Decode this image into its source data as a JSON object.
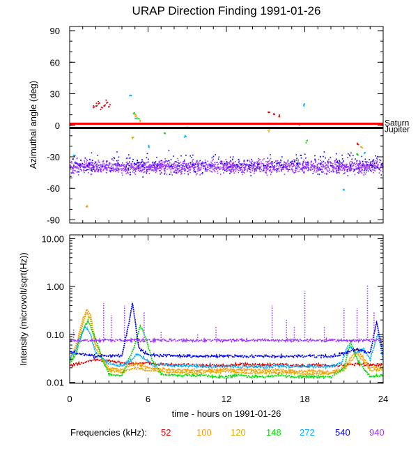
{
  "chart_data": [
    {
      "type": "scatter",
      "title": "URAP Direction Finding  1991-01-26",
      "xlabel": "",
      "ylabel": "Azimuthal angle (deg)",
      "xlim": [
        0,
        24
      ],
      "ylim": [
        -93,
        94
      ],
      "yticks": [
        90,
        60,
        30,
        0,
        -30,
        -60,
        -90
      ],
      "ytick_labels": [
        "90",
        "60",
        "30",
        "0",
        "-30",
        "-60",
        "-90"
      ],
      "reference_lines": [
        {
          "name": "Saturn",
          "y": 1.5,
          "color": "#ff0000"
        },
        {
          "name": "Jupiter",
          "y": -2.5,
          "color": "#000000"
        }
      ],
      "series": [
        {
          "name": "940",
          "color": "#9933ff",
          "description": "dense band",
          "x_range": [
            0,
            24
          ],
          "y_center": -39,
          "y_spread": 6
        },
        {
          "name": "540",
          "color": "#0000ee",
          "description": "scattered near band",
          "x_range": [
            0,
            24
          ],
          "y_center": -36,
          "y_spread": 10
        },
        {
          "name": "272",
          "color": "#00aaff",
          "points": [
            [
              0.3,
              -28
            ],
            [
              4.6,
              30
            ],
            [
              5.0,
              8
            ],
            [
              6.0,
              -20
            ],
            [
              8.8,
              -10
            ],
            [
              17.9,
              20
            ],
            [
              20.9,
              -60
            ],
            [
              22.5,
              -25
            ]
          ]
        },
        {
          "name": "148",
          "color": "#00dd00",
          "points": [
            [
              4.9,
              12
            ],
            [
              5.2,
              8
            ],
            [
              7.2,
              -6
            ],
            [
              17.6,
              2
            ],
            [
              18.1,
              -15
            ],
            [
              22.0,
              -28
            ]
          ]
        },
        {
          "name": "120",
          "color": "#ddaa00",
          "points": [
            [
              4.8,
              -12
            ],
            [
              5.3,
              5
            ],
            [
              9.0,
              -2
            ],
            [
              15.2,
              -5
            ],
            [
              22.3,
              -20
            ]
          ]
        },
        {
          "name": "100",
          "color": "#ff9900",
          "points": [
            [
              1.3,
              -77
            ],
            [
              5.0,
              10
            ],
            [
              15.0,
              -3
            ]
          ]
        },
        {
          "name": "52",
          "color": "#dd0000",
          "points": [
            [
              1.8,
              18
            ],
            [
              2.0,
              20
            ],
            [
              2.2,
              22
            ],
            [
              2.4,
              17
            ],
            [
              2.6,
              20
            ],
            [
              2.8,
              23
            ],
            [
              3.0,
              19
            ],
            [
              15.2,
              12
            ],
            [
              15.6,
              10
            ],
            [
              16.0,
              9
            ],
            [
              22.0,
              -18
            ]
          ]
        }
      ]
    },
    {
      "type": "line",
      "title": "",
      "xlabel": "time - hours on 1991-01-26",
      "ylabel": "Intensity (microvolt/sqrt(Hz))",
      "xscale": "linear",
      "yscale": "log",
      "xlim": [
        0,
        24
      ],
      "ylim": [
        0.0095,
        12
      ],
      "xticks": [
        0,
        6,
        12,
        18,
        24
      ],
      "xtick_labels": [
        "0",
        "6",
        "12",
        "18",
        "24"
      ],
      "yticks": [
        10,
        1,
        0.1,
        0.01
      ],
      "ytick_labels": [
        "10.00",
        "1.00",
        "0.10",
        "0.01"
      ],
      "series": [
        {
          "name": "52",
          "color": "#dd0000",
          "x": [
            0,
            1,
            2,
            3,
            4,
            5,
            6,
            7,
            8,
            9,
            10,
            11,
            12,
            13,
            14,
            15,
            16,
            17,
            18,
            19,
            20,
            21,
            22,
            23,
            24
          ],
          "y": [
            0.022,
            0.026,
            0.03,
            0.028,
            0.025,
            0.024,
            0.025,
            0.024,
            0.023,
            0.023,
            0.022,
            0.023,
            0.022,
            0.024,
            0.023,
            0.023,
            0.024,
            0.023,
            0.022,
            0.023,
            0.022,
            0.023,
            0.024,
            0.023,
            0.023
          ]
        },
        {
          "name": "100",
          "color": "#ff9900",
          "x": [
            0,
            0.5,
            1,
            1.3,
            1.6,
            2,
            3,
            4,
            5,
            6,
            7,
            8,
            9,
            10,
            11,
            12,
            13,
            14,
            15,
            16,
            17,
            18,
            19,
            20,
            21,
            22,
            23,
            24
          ],
          "y": [
            0.03,
            0.06,
            0.2,
            0.33,
            0.25,
            0.06,
            0.02,
            0.018,
            0.025,
            0.02,
            0.019,
            0.018,
            0.018,
            0.018,
            0.018,
            0.019,
            0.018,
            0.018,
            0.018,
            0.018,
            0.017,
            0.017,
            0.017,
            0.016,
            0.02,
            0.05,
            0.02,
            0.02
          ]
        },
        {
          "name": "120",
          "color": "#ddaa00",
          "x": [
            0,
            0.5,
            1,
            1.3,
            1.6,
            2,
            3,
            4,
            5,
            6,
            7,
            8,
            9,
            10,
            11,
            12,
            13,
            14,
            15,
            16,
            17,
            18,
            19,
            20,
            21,
            22,
            23,
            24
          ],
          "y": [
            0.028,
            0.05,
            0.16,
            0.28,
            0.2,
            0.05,
            0.018,
            0.016,
            0.02,
            0.018,
            0.017,
            0.016,
            0.016,
            0.016,
            0.016,
            0.017,
            0.016,
            0.016,
            0.016,
            0.016,
            0.016,
            0.015,
            0.015,
            0.015,
            0.018,
            0.04,
            0.018,
            0.018
          ]
        },
        {
          "name": "148",
          "color": "#00dd00",
          "x": [
            0,
            0.5,
            1,
            1.4,
            2,
            2.5,
            3,
            4,
            5,
            5.4,
            5.8,
            6.3,
            7,
            8,
            9,
            10,
            11,
            12,
            13,
            14,
            15,
            16,
            17,
            18,
            19,
            20,
            21,
            21.5,
            22,
            23,
            24
          ],
          "y": [
            0.025,
            0.04,
            0.12,
            0.2,
            0.08,
            0.03,
            0.015,
            0.014,
            0.06,
            0.15,
            0.09,
            0.03,
            0.015,
            0.014,
            0.014,
            0.014,
            0.013,
            0.013,
            0.014,
            0.013,
            0.013,
            0.014,
            0.013,
            0.013,
            0.013,
            0.013,
            0.02,
            0.07,
            0.03,
            0.013,
            0.014
          ]
        },
        {
          "name": "272",
          "color": "#00aaff",
          "x": [
            0,
            0.5,
            0.9,
            1.2,
            1.6,
            2,
            3,
            4,
            4.8,
            5.2,
            5.8,
            6.5,
            7,
            8,
            9,
            10,
            11,
            12,
            13,
            14,
            15,
            16,
            17,
            18,
            19,
            20,
            20.8,
            21.3,
            22,
            22.5,
            23,
            23.6,
            24
          ],
          "y": [
            0.03,
            0.05,
            0.1,
            0.15,
            0.1,
            0.04,
            0.025,
            0.022,
            0.03,
            0.04,
            0.03,
            0.022,
            0.024,
            0.022,
            0.022,
            0.022,
            0.021,
            0.022,
            0.021,
            0.021,
            0.021,
            0.022,
            0.021,
            0.022,
            0.021,
            0.021,
            0.025,
            0.06,
            0.04,
            0.05,
            0.03,
            0.1,
            0.03
          ]
        },
        {
          "name": "540",
          "color": "#0000ee",
          "x": [
            0,
            0.5,
            1,
            2,
            3,
            4,
            4.5,
            4.8,
            5.0,
            5.3,
            6,
            7,
            8,
            9,
            10,
            11,
            12,
            13,
            14,
            15,
            16,
            17,
            18,
            19,
            20,
            21,
            22,
            23,
            23.5,
            24
          ],
          "y": [
            0.045,
            0.04,
            0.038,
            0.035,
            0.036,
            0.036,
            0.15,
            0.45,
            0.2,
            0.05,
            0.038,
            0.036,
            0.036,
            0.035,
            0.035,
            0.035,
            0.035,
            0.035,
            0.035,
            0.035,
            0.035,
            0.035,
            0.035,
            0.035,
            0.035,
            0.04,
            0.05,
            0.04,
            0.18,
            0.04
          ]
        },
        {
          "name": "940",
          "color": "#9933ff",
          "x": [
            0,
            24
          ],
          "y": [
            0.075,
            0.075
          ],
          "spikes_x": [
            0.3,
            2.6,
            3.2,
            4.2,
            5.7,
            7.0,
            9.8,
            11.2,
            15.5,
            16.6,
            17.2,
            18.0,
            19.5,
            21.0,
            22.0,
            22.8,
            23.3
          ],
          "spikes_y": [
            0.13,
            0.45,
            0.25,
            0.4,
            0.3,
            0.12,
            0.1,
            0.15,
            0.4,
            0.2,
            0.15,
            0.8,
            0.15,
            0.35,
            0.35,
            1.05,
            0.3
          ]
        }
      ]
    }
  ],
  "legend": {
    "label": "Frequencies (kHz):",
    "entries": [
      {
        "text": "52",
        "color": "#dd0000"
      },
      {
        "text": "100",
        "color": "#ff9900"
      },
      {
        "text": "120",
        "color": "#ddaa00"
      },
      {
        "text": "148",
        "color": "#00dd00"
      },
      {
        "text": "272",
        "color": "#00aaff"
      },
      {
        "text": "540",
        "color": "#0000ee"
      },
      {
        "text": "940",
        "color": "#9933ff"
      }
    ]
  }
}
